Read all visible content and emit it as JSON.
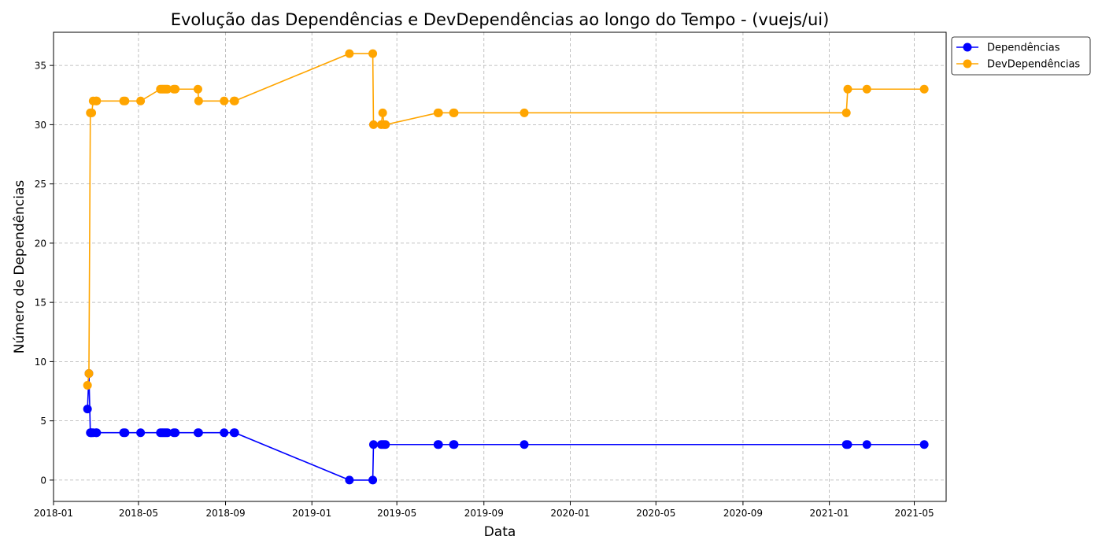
{
  "chart_data": {
    "type": "line",
    "title": "Evolução das Dependências e DevDependências ao longo do Tempo - (vuejs/ui)",
    "xlabel": "Data",
    "ylabel": "Número de Dependências",
    "xlim": [
      "2018-01-01",
      "2021-06-15"
    ],
    "ylim": [
      -1.8,
      37.8
    ],
    "x_ticks": [
      "2018-01-01",
      "2018-05-01",
      "2018-09-01",
      "2019-01-01",
      "2019-05-01",
      "2019-09-01",
      "2020-01-01",
      "2020-05-01",
      "2020-09-01",
      "2021-01-01",
      "2021-05-01"
    ],
    "x_tick_labels": [
      "2018-01",
      "2018-05",
      "2018-09",
      "2019-01",
      "2019-05",
      "2019-09",
      "2020-01",
      "2020-05",
      "2020-09",
      "2021-01",
      "2021-05"
    ],
    "y_ticks": [
      0,
      5,
      10,
      15,
      20,
      25,
      30,
      35
    ],
    "grid": true,
    "legend_position": "upper-right-outside",
    "x": [
      "2018-02-18",
      "2018-02-20",
      "2018-02-22",
      "2018-02-23",
      "2018-02-24",
      "2018-02-26",
      "2018-03-02",
      "2018-03-03",
      "2018-04-10",
      "2018-04-12",
      "2018-05-04",
      "2018-06-01",
      "2018-06-03",
      "2018-06-05",
      "2018-06-07",
      "2018-06-09",
      "2018-06-11",
      "2018-06-20",
      "2018-06-22",
      "2018-07-24",
      "2018-07-25",
      "2018-08-30",
      "2018-09-13",
      "2018-09-14",
      "2019-02-23",
      "2019-03-28",
      "2019-03-29",
      "2019-04-09",
      "2019-04-11",
      "2019-04-13",
      "2019-04-15",
      "2019-06-28",
      "2019-06-29",
      "2019-07-20",
      "2019-07-21",
      "2019-10-28",
      "2021-01-25",
      "2021-01-27",
      "2021-02-23",
      "2021-05-15"
    ],
    "series": [
      {
        "name": "Dependências",
        "color": "#0000ff",
        "values": [
          6,
          9,
          4,
          4,
          4,
          4,
          4,
          4,
          4,
          4,
          4,
          4,
          4,
          4,
          4,
          4,
          4,
          4,
          4,
          4,
          4,
          4,
          4,
          4,
          0,
          0,
          3,
          3,
          3,
          3,
          3,
          3,
          3,
          3,
          3,
          3,
          3,
          3,
          3,
          3
        ]
      },
      {
        "name": "DevDependências",
        "color": "#ffa500",
        "values": [
          8,
          9,
          31,
          31,
          31,
          32,
          32,
          32,
          32,
          32,
          32,
          33,
          33,
          33,
          33,
          33,
          33,
          33,
          33,
          33,
          32,
          32,
          32,
          32,
          36,
          36,
          30,
          30,
          31,
          30,
          30,
          31,
          31,
          31,
          31,
          31,
          31,
          33,
          33,
          33
        ]
      }
    ]
  }
}
